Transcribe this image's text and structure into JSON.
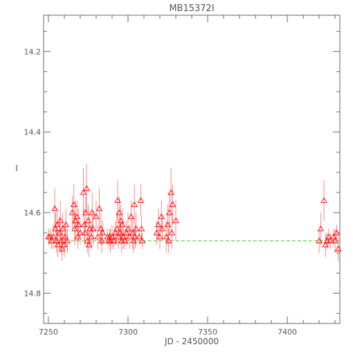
{
  "colors": {
    "points": "#ff0000",
    "errorbars": "#ff6666",
    "model": "#33cc33",
    "axis": "#666666",
    "text": "#555555"
  },
  "chart_data": {
    "type": "scatter",
    "title": "MB15372I",
    "xlabel": "JD - 2450000",
    "ylabel": "I",
    "xlim": [
      7247,
      7433
    ],
    "ylim": [
      14.875,
      14.11
    ],
    "y_inverted": true,
    "x_ticks": [
      "7250",
      "7300",
      "7350",
      "7400"
    ],
    "y_ticks": [
      "14.2",
      "14.4",
      "14.6",
      "14.8"
    ],
    "grid": false,
    "legend": "none",
    "marker": "triangle",
    "model_line": {
      "y": 14.67,
      "x_start": 7250,
      "x_end": 7433,
      "style": "dashed"
    },
    "series": [
      {
        "points": [
          [
            7250,
            14.66,
            0.02
          ],
          [
            7251,
            14.66,
            0.02
          ],
          [
            7252,
            14.67,
            0.02
          ],
          [
            7253,
            14.66,
            0.03
          ],
          [
            7254,
            14.59,
            0.05
          ],
          [
            7254.5,
            14.64,
            0.04
          ],
          [
            7255,
            14.67,
            0.03
          ],
          [
            7255.5,
            14.63,
            0.04
          ],
          [
            7256,
            14.68,
            0.03
          ],
          [
            7257,
            14.65,
            0.04
          ],
          [
            7257.5,
            14.62,
            0.05
          ],
          [
            7258,
            14.67,
            0.03
          ],
          [
            7258.5,
            14.69,
            0.03
          ],
          [
            7259,
            14.64,
            0.04
          ],
          [
            7260,
            14.68,
            0.03
          ],
          [
            7260.5,
            14.66,
            0.03
          ],
          [
            7261,
            14.63,
            0.04
          ],
          [
            7262,
            14.67,
            0.03
          ],
          [
            7265,
            14.6,
            0.04
          ],
          [
            7266,
            14.58,
            0.05
          ],
          [
            7266.5,
            14.64,
            0.04
          ],
          [
            7267,
            14.62,
            0.05
          ],
          [
            7268,
            14.61,
            0.04
          ],
          [
            7268.5,
            14.66,
            0.03
          ],
          [
            7269,
            14.63,
            0.04
          ],
          [
            7270,
            14.65,
            0.03
          ],
          [
            7272,
            14.55,
            0.06
          ],
          [
            7272.5,
            14.63,
            0.04
          ],
          [
            7273,
            14.65,
            0.03
          ],
          [
            7273.5,
            14.6,
            0.04
          ],
          [
            7274,
            14.54,
            0.06
          ],
          [
            7274.5,
            14.67,
            0.03
          ],
          [
            7275,
            14.62,
            0.04
          ],
          [
            7275.5,
            14.68,
            0.03
          ],
          [
            7276,
            14.64,
            0.04
          ],
          [
            7277,
            14.66,
            0.03
          ],
          [
            7277.5,
            14.6,
            0.05
          ],
          [
            7278,
            14.64,
            0.04
          ],
          [
            7280,
            14.61,
            0.04
          ],
          [
            7281,
            14.66,
            0.03
          ],
          [
            7282,
            14.59,
            0.05
          ],
          [
            7283,
            14.64,
            0.04
          ],
          [
            7283.5,
            14.67,
            0.03
          ],
          [
            7284,
            14.65,
            0.03
          ],
          [
            7287,
            14.66,
            0.02
          ],
          [
            7288,
            14.67,
            0.02
          ],
          [
            7288.5,
            14.66,
            0.02
          ],
          [
            7289,
            14.67,
            0.03
          ],
          [
            7290,
            14.66,
            0.03
          ],
          [
            7291,
            14.67,
            0.02
          ],
          [
            7292,
            14.65,
            0.03
          ],
          [
            7293,
            14.64,
            0.04
          ],
          [
            7293.5,
            14.57,
            0.05
          ],
          [
            7294,
            14.66,
            0.03
          ],
          [
            7294.5,
            14.6,
            0.04
          ],
          [
            7295,
            14.65,
            0.03
          ],
          [
            7295.5,
            14.62,
            0.04
          ],
          [
            7296,
            14.67,
            0.03
          ],
          [
            7296.5,
            14.63,
            0.04
          ],
          [
            7297,
            14.66,
            0.03
          ],
          [
            7298,
            14.67,
            0.02
          ],
          [
            7299,
            14.65,
            0.03
          ],
          [
            7300,
            14.64,
            0.04
          ],
          [
            7301,
            14.66,
            0.03
          ],
          [
            7302,
            14.61,
            0.04
          ],
          [
            7303,
            14.65,
            0.04
          ],
          [
            7303.5,
            14.67,
            0.03
          ],
          [
            7304,
            14.58,
            0.05
          ],
          [
            7304.5,
            14.66,
            0.03
          ],
          [
            7305,
            14.64,
            0.04
          ],
          [
            7307,
            14.66,
            0.02
          ],
          [
            7308,
            14.57,
            0.04
          ],
          [
            7308.5,
            14.64,
            0.03
          ],
          [
            7309,
            14.67,
            0.02
          ],
          [
            7318,
            14.65,
            0.03
          ],
          [
            7319,
            14.63,
            0.04
          ],
          [
            7320,
            14.66,
            0.03
          ],
          [
            7321,
            14.61,
            0.04
          ],
          [
            7321.5,
            14.64,
            0.03
          ],
          [
            7324,
            14.66,
            0.04
          ],
          [
            7325,
            14.63,
            0.05
          ],
          [
            7325.5,
            14.67,
            0.03
          ],
          [
            7326,
            14.6,
            0.05
          ],
          [
            7327,
            14.55,
            0.06
          ],
          [
            7327.5,
            14.65,
            0.04
          ],
          [
            7328,
            14.58,
            0.05
          ],
          [
            7330,
            14.62,
            0.05
          ],
          [
            7420,
            14.67,
            0.03
          ],
          [
            7421,
            14.64,
            0.04
          ],
          [
            7423,
            14.57,
            0.05
          ],
          [
            7424,
            14.68,
            0.03
          ],
          [
            7425,
            14.67,
            0.02
          ],
          [
            7426,
            14.66,
            0.02
          ],
          [
            7427,
            14.67,
            0.02
          ],
          [
            7429,
            14.66,
            0.02
          ],
          [
            7430,
            14.67,
            0.03
          ],
          [
            7431,
            14.65,
            0.02
          ],
          [
            7432,
            14.69,
            0.03
          ]
        ]
      }
    ]
  }
}
